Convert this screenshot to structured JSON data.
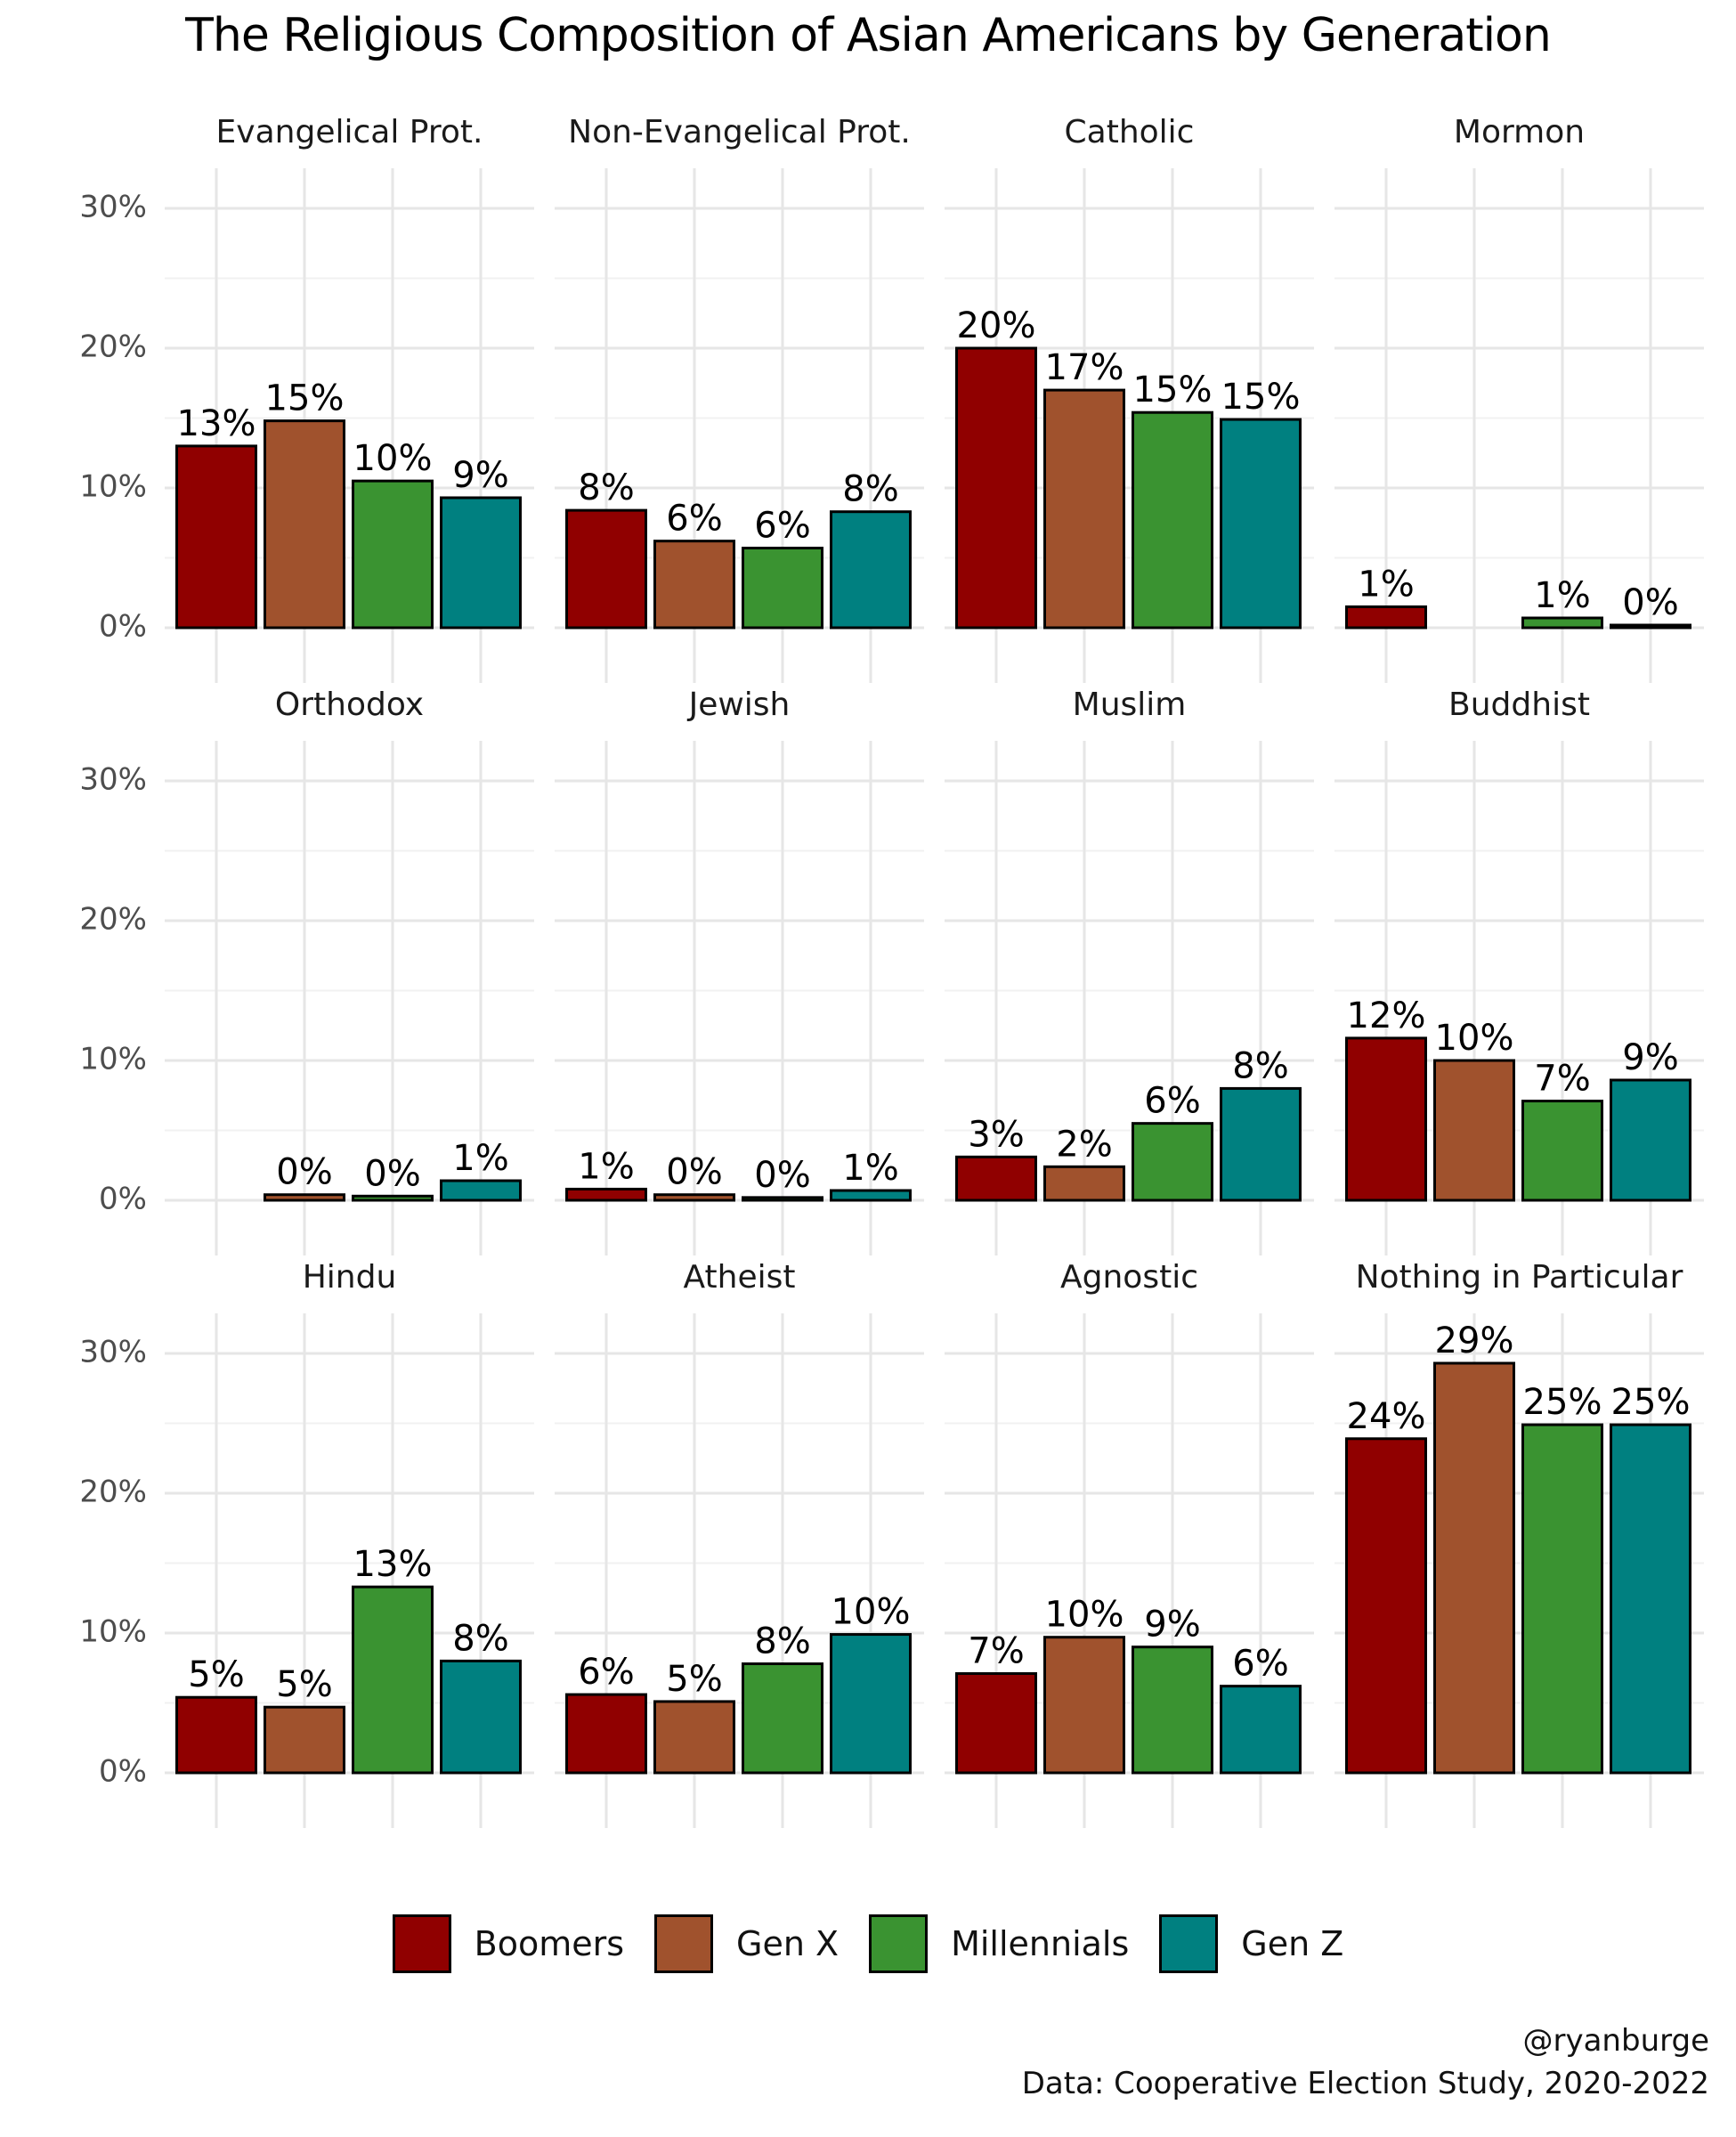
{
  "chart_data": {
    "type": "bar",
    "title": "The Religious Composition of Asian Americans by Generation",
    "xlabel": "",
    "ylabel": "",
    "ylim": [
      0,
      0.3
    ],
    "y_ticks": [
      "0%",
      "10%",
      "20%",
      "30%"
    ],
    "grid": true,
    "legend_position": "bottom",
    "series": [
      {
        "name": "Boomers",
        "color": "#900000"
      },
      {
        "name": "Gen X",
        "color": "#A0522D"
      },
      {
        "name": "Millennials",
        "color": "#3A9331"
      },
      {
        "name": "Gen Z",
        "color": "#008080"
      }
    ],
    "facets": [
      {
        "name": "Evangelical Prot.",
        "values": [
          0.13,
          0.148,
          0.105,
          0.093
        ],
        "labels": [
          "13%",
          "15%",
          "10%",
          "9%"
        ]
      },
      {
        "name": "Non-Evangelical Prot.",
        "values": [
          0.084,
          0.062,
          0.057,
          0.083
        ],
        "labels": [
          "8%",
          "6%",
          "6%",
          "8%"
        ]
      },
      {
        "name": "Catholic",
        "values": [
          0.2,
          0.17,
          0.154,
          0.149
        ],
        "labels": [
          "20%",
          "17%",
          "15%",
          "15%"
        ]
      },
      {
        "name": "Mormon",
        "values": [
          0.015,
          null,
          0.007,
          0.001
        ],
        "labels": [
          "1%",
          "",
          "1%",
          "0%"
        ]
      },
      {
        "name": "Orthodox",
        "values": [
          null,
          0.004,
          0.003,
          0.014
        ],
        "labels": [
          "",
          "0%",
          "0%",
          "1%"
        ]
      },
      {
        "name": "Jewish",
        "values": [
          0.008,
          0.004,
          0.002,
          0.007
        ],
        "labels": [
          "1%",
          "0%",
          "0%",
          "1%"
        ]
      },
      {
        "name": "Muslim",
        "values": [
          0.031,
          0.024,
          0.055,
          0.08
        ],
        "labels": [
          "3%",
          "2%",
          "6%",
          "8%"
        ]
      },
      {
        "name": "Buddhist",
        "values": [
          0.116,
          0.1,
          0.071,
          0.086
        ],
        "labels": [
          "12%",
          "10%",
          "7%",
          "9%"
        ]
      },
      {
        "name": "Hindu",
        "values": [
          0.054,
          0.047,
          0.133,
          0.08
        ],
        "labels": [
          "5%",
          "5%",
          "13%",
          "8%"
        ]
      },
      {
        "name": "Atheist",
        "values": [
          0.056,
          0.051,
          0.078,
          0.099
        ],
        "labels": [
          "6%",
          "5%",
          "8%",
          "10%"
        ]
      },
      {
        "name": "Agnostic",
        "values": [
          0.071,
          0.097,
          0.09,
          0.062
        ],
        "labels": [
          "7%",
          "10%",
          "9%",
          "6%"
        ]
      },
      {
        "name": "Nothing in Particular",
        "values": [
          0.239,
          0.293,
          0.249,
          0.249
        ],
        "labels": [
          "24%",
          "29%",
          "25%",
          "25%"
        ]
      }
    ]
  },
  "caption": {
    "handle": "@ryanburge",
    "source": "Data: Cooperative Election Study, 2020-2022"
  }
}
